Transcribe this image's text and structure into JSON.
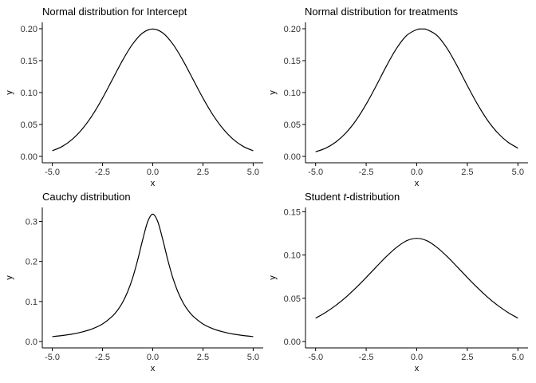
{
  "chart_data": [
    {
      "type": "line",
      "title": "Normal distribution for Intercept",
      "xlabel": "x",
      "ylabel": "y",
      "xlim": [
        -5.5,
        5.5
      ],
      "ylim": [
        0,
        0.21
      ],
      "xticks": [
        -5,
        -2.5,
        0,
        2.5,
        5
      ],
      "xtick_labels": [
        "-5.0",
        "-2.5",
        "0.0",
        "2.5",
        "5.0"
      ],
      "yticks": [
        0,
        0.05,
        0.1,
        0.15,
        0.2
      ],
      "ytick_labels": [
        "0.00",
        "0.05",
        "0.10",
        "0.15",
        "0.20"
      ],
      "grid": false,
      "series": [
        {
          "x": [
            -5,
            -4.5,
            -4,
            -3.5,
            -3,
            -2.5,
            -2,
            -1.5,
            -1,
            -0.5,
            0,
            0.5,
            1,
            1.5,
            2,
            2.5,
            3,
            3.5,
            4,
            4.5,
            5
          ],
          "values": [
            0.0088,
            0.0157,
            0.027,
            0.0433,
            0.0648,
            0.0913,
            0.121,
            0.1506,
            0.176,
            0.1934,
            0.1995,
            0.1934,
            0.176,
            0.1506,
            0.121,
            0.0913,
            0.0648,
            0.0433,
            0.027,
            0.0157,
            0.0088
          ]
        }
      ]
    },
    {
      "type": "line",
      "title": "Normal distribution for treatments",
      "xlabel": "x",
      "ylabel": "y",
      "xlim": [
        -5.5,
        5.5
      ],
      "ylim": [
        0,
        0.21
      ],
      "xticks": [
        -5,
        -2.5,
        0,
        2.5,
        5
      ],
      "xtick_labels": [
        "-5.0",
        "-2.5",
        "0.0",
        "2.5",
        "5.0"
      ],
      "yticks": [
        0,
        0.05,
        0.1,
        0.15,
        0.2
      ],
      "ytick_labels": [
        "0.00",
        "0.05",
        "0.10",
        "0.15",
        "0.20"
      ],
      "grid": false,
      "series": [
        {
          "x": [
            -5,
            -4.5,
            -4,
            -3.5,
            -3,
            -2.5,
            -2,
            -1.5,
            -1,
            -0.5,
            0,
            0.3,
            0.5,
            1,
            1.5,
            2,
            2.5,
            3,
            3.5,
            4,
            4.5,
            5
          ],
          "values": [
            0.0072,
            0.0129,
            0.0225,
            0.0369,
            0.0566,
            0.0818,
            0.1109,
            0.1415,
            0.1691,
            0.1894,
            0.1986,
            0.1995,
            0.1986,
            0.1894,
            0.1691,
            0.1415,
            0.1109,
            0.0818,
            0.0566,
            0.0369,
            0.0225,
            0.0129
          ]
        }
      ]
    },
    {
      "type": "line",
      "title": "Cauchy distribution",
      "xlabel": "x",
      "ylabel": "y",
      "xlim": [
        -5.5,
        5.5
      ],
      "ylim": [
        0,
        0.335
      ],
      "xticks": [
        -5,
        -2.5,
        0,
        2.5,
        5
      ],
      "xtick_labels": [
        "-5.0",
        "-2.5",
        "0.0",
        "2.5",
        "5.0"
      ],
      "yticks": [
        0,
        0.1,
        0.2,
        0.3
      ],
      "ytick_labels": [
        "0.0",
        "0.1",
        "0.2",
        "0.3"
      ],
      "grid": false,
      "series": [
        {
          "x": [
            -5,
            -4.5,
            -4,
            -3.5,
            -3,
            -2.5,
            -2,
            -1.75,
            -1.5,
            -1.25,
            -1,
            -0.75,
            -0.5,
            -0.25,
            0,
            0.25,
            0.5,
            0.75,
            1,
            1.25,
            1.5,
            1.75,
            2,
            2.5,
            3,
            3.5,
            4,
            4.5,
            5
          ],
          "values": [
            0.0122,
            0.0149,
            0.0187,
            0.0241,
            0.0318,
            0.0439,
            0.0637,
            0.0783,
            0.0979,
            0.1244,
            0.1592,
            0.2037,
            0.2546,
            0.2996,
            0.3183,
            0.2996,
            0.2546,
            0.2037,
            0.1592,
            0.1244,
            0.0979,
            0.0783,
            0.0637,
            0.0439,
            0.0318,
            0.0241,
            0.0187,
            0.0149,
            0.0122
          ]
        }
      ]
    },
    {
      "type": "line",
      "title": "Student t-distribution",
      "title_prefix": "Student ",
      "title_italic": "t",
      "title_suffix": "-distribution",
      "xlabel": "x",
      "ylabel": "y",
      "xlim": [
        -5.5,
        5.5
      ],
      "ylim": [
        0,
        0.155
      ],
      "xticks": [
        -5,
        -2.5,
        0,
        2.5,
        5
      ],
      "xtick_labels": [
        "-5.0",
        "-2.5",
        "0.0",
        "2.5",
        "5.0"
      ],
      "yticks": [
        0,
        0.05,
        0.1,
        0.15
      ],
      "ytick_labels": [
        "0.00",
        "0.05",
        "0.10",
        "0.15"
      ],
      "grid": false,
      "series": [
        {
          "x": [
            -5,
            -4.5,
            -4,
            -3.5,
            -3,
            -2.5,
            -2,
            -1.5,
            -1,
            -0.5,
            0,
            0.5,
            1,
            1.5,
            2,
            2.5,
            3,
            3.5,
            4,
            4.5,
            5
          ],
          "values": [
            0.027,
            0.0337,
            0.0418,
            0.0513,
            0.0622,
            0.074,
            0.0863,
            0.0983,
            0.1088,
            0.1165,
            0.1193,
            0.1165,
            0.1088,
            0.0983,
            0.0863,
            0.074,
            0.0622,
            0.0513,
            0.0418,
            0.0337,
            0.027
          ]
        }
      ]
    }
  ]
}
